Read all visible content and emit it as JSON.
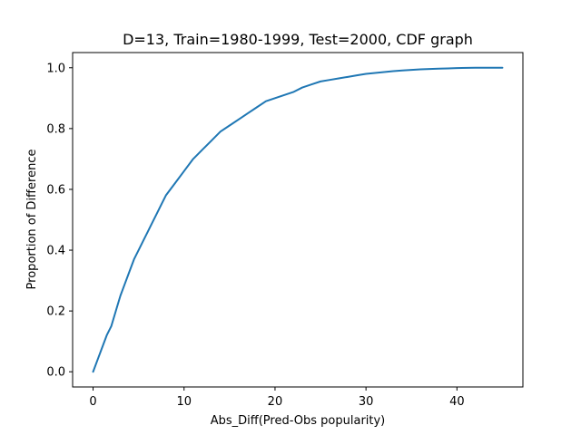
{
  "chart_data": {
    "type": "line",
    "title": "D=13, Train=1980-1999, Test=2000, CDF graph",
    "xlabel": "Abs_Diff(Pred-Obs popularity)",
    "ylabel": "Proportion of Difference",
    "xlim": [
      -2.25,
      47.25
    ],
    "ylim": [
      -0.05,
      1.05
    ],
    "xticks": [
      0,
      10,
      20,
      30,
      40
    ],
    "yticks": [
      0.0,
      0.2,
      0.4,
      0.6,
      0.8,
      1.0
    ],
    "xtick_labels": [
      "0",
      "10",
      "20",
      "30",
      "40"
    ],
    "ytick_labels": [
      "0.0",
      "0.2",
      "0.4",
      "0.6",
      "0.8",
      "1.0"
    ],
    "grid": false,
    "line_color": "#1f77b4",
    "series": [
      {
        "x": [
          0,
          0.5,
          1,
          1.5,
          2,
          2.5,
          3,
          3.5,
          4,
          4.5,
          5,
          5.5,
          6,
          6.5,
          7,
          7.5,
          8,
          9,
          10,
          11,
          12,
          13,
          14,
          15,
          16,
          17,
          18,
          19,
          20,
          21,
          22,
          23,
          24,
          25,
          26,
          27,
          28,
          29,
          30,
          31,
          32,
          33,
          34,
          35,
          36,
          37,
          38,
          39,
          40,
          42,
          45
        ],
        "y": [
          0.0,
          0.04,
          0.08,
          0.12,
          0.15,
          0.2,
          0.25,
          0.29,
          0.33,
          0.37,
          0.4,
          0.43,
          0.46,
          0.49,
          0.52,
          0.55,
          0.58,
          0.62,
          0.66,
          0.7,
          0.73,
          0.76,
          0.79,
          0.81,
          0.83,
          0.85,
          0.87,
          0.89,
          0.9,
          0.91,
          0.92,
          0.935,
          0.945,
          0.955,
          0.96,
          0.965,
          0.97,
          0.975,
          0.98,
          0.983,
          0.986,
          0.989,
          0.991,
          0.993,
          0.995,
          0.996,
          0.997,
          0.998,
          0.999,
          1.0,
          1.0
        ]
      }
    ]
  }
}
